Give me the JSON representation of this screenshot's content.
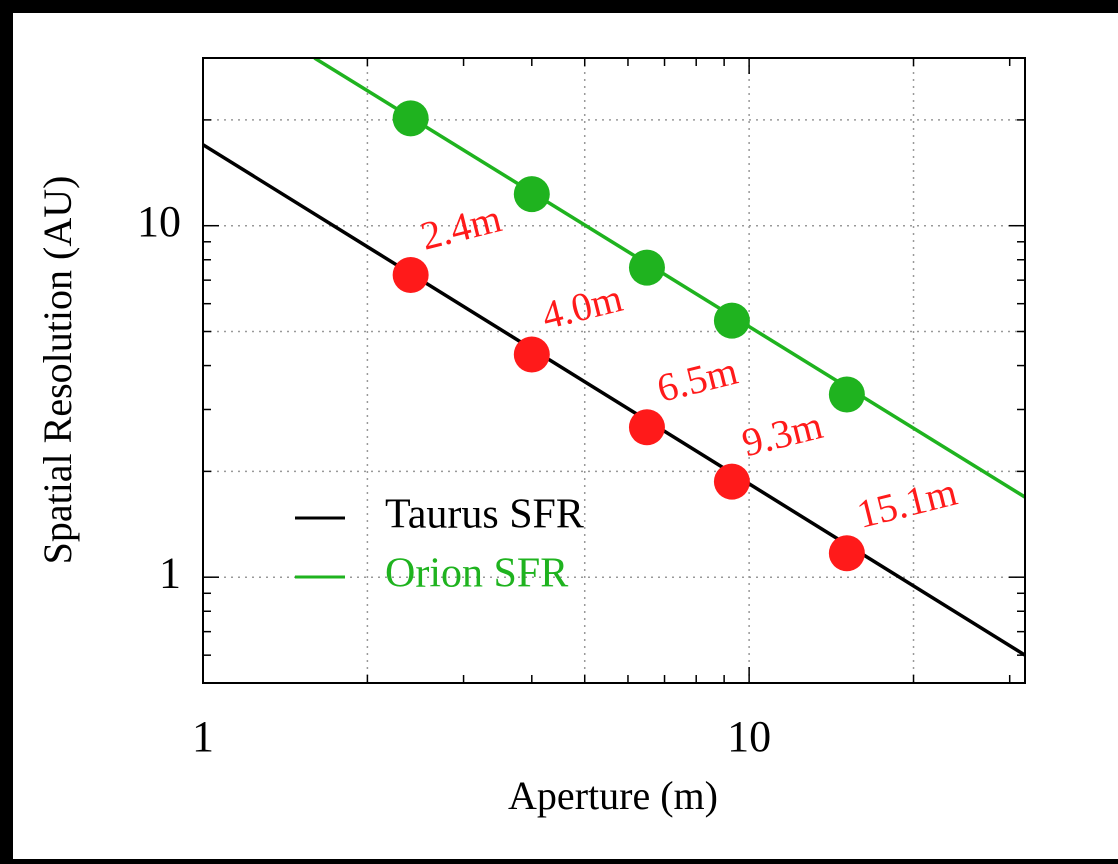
{
  "chart_data": {
    "type": "line",
    "xlabel": "Aperture (m)",
    "ylabel": "Spatial Resolution (AU)",
    "log_x": true,
    "log_y": true,
    "xlim": [
      1,
      32
    ],
    "ylim": [
      0.5,
      30
    ],
    "xticks": [
      1,
      10
    ],
    "yticks": [
      1,
      10
    ],
    "xminor": [
      2,
      3,
      4,
      5,
      6,
      7,
      8,
      9,
      20,
      30
    ],
    "yminor": [
      0.6,
      0.7,
      0.8,
      0.9,
      2,
      3,
      4,
      5,
      6,
      7,
      8,
      9,
      20,
      30
    ],
    "xgrid": [
      2,
      5,
      10,
      20
    ],
    "ygrid": [
      1,
      2,
      5,
      10,
      20
    ],
    "legend": "lower left",
    "series": [
      {
        "name": "Taurus SFR",
        "color": "#000000",
        "x": [
          1,
          32
        ],
        "values": [
          17,
          0.6
        ]
      },
      {
        "name": "Orion SFR",
        "color": "#1fb31f",
        "x": [
          1.6,
          32
        ],
        "values": [
          30,
          1.69
        ]
      }
    ],
    "points": {
      "x": [
        2.4,
        4.0,
        6.5,
        9.3,
        15.1
      ],
      "labels": [
        "2.4m",
        "4.0m",
        "6.5m",
        "9.3m",
        "15.1m"
      ],
      "label_color": "#ff1a1a",
      "series": [
        {
          "color": "#ff1a1a",
          "values": [
            7.24,
            4.3,
            2.67,
            1.87,
            1.17
          ]
        },
        {
          "color": "#1fb31f",
          "values": [
            20.2,
            12.3,
            7.6,
            5.37,
            3.31
          ]
        }
      ]
    }
  }
}
